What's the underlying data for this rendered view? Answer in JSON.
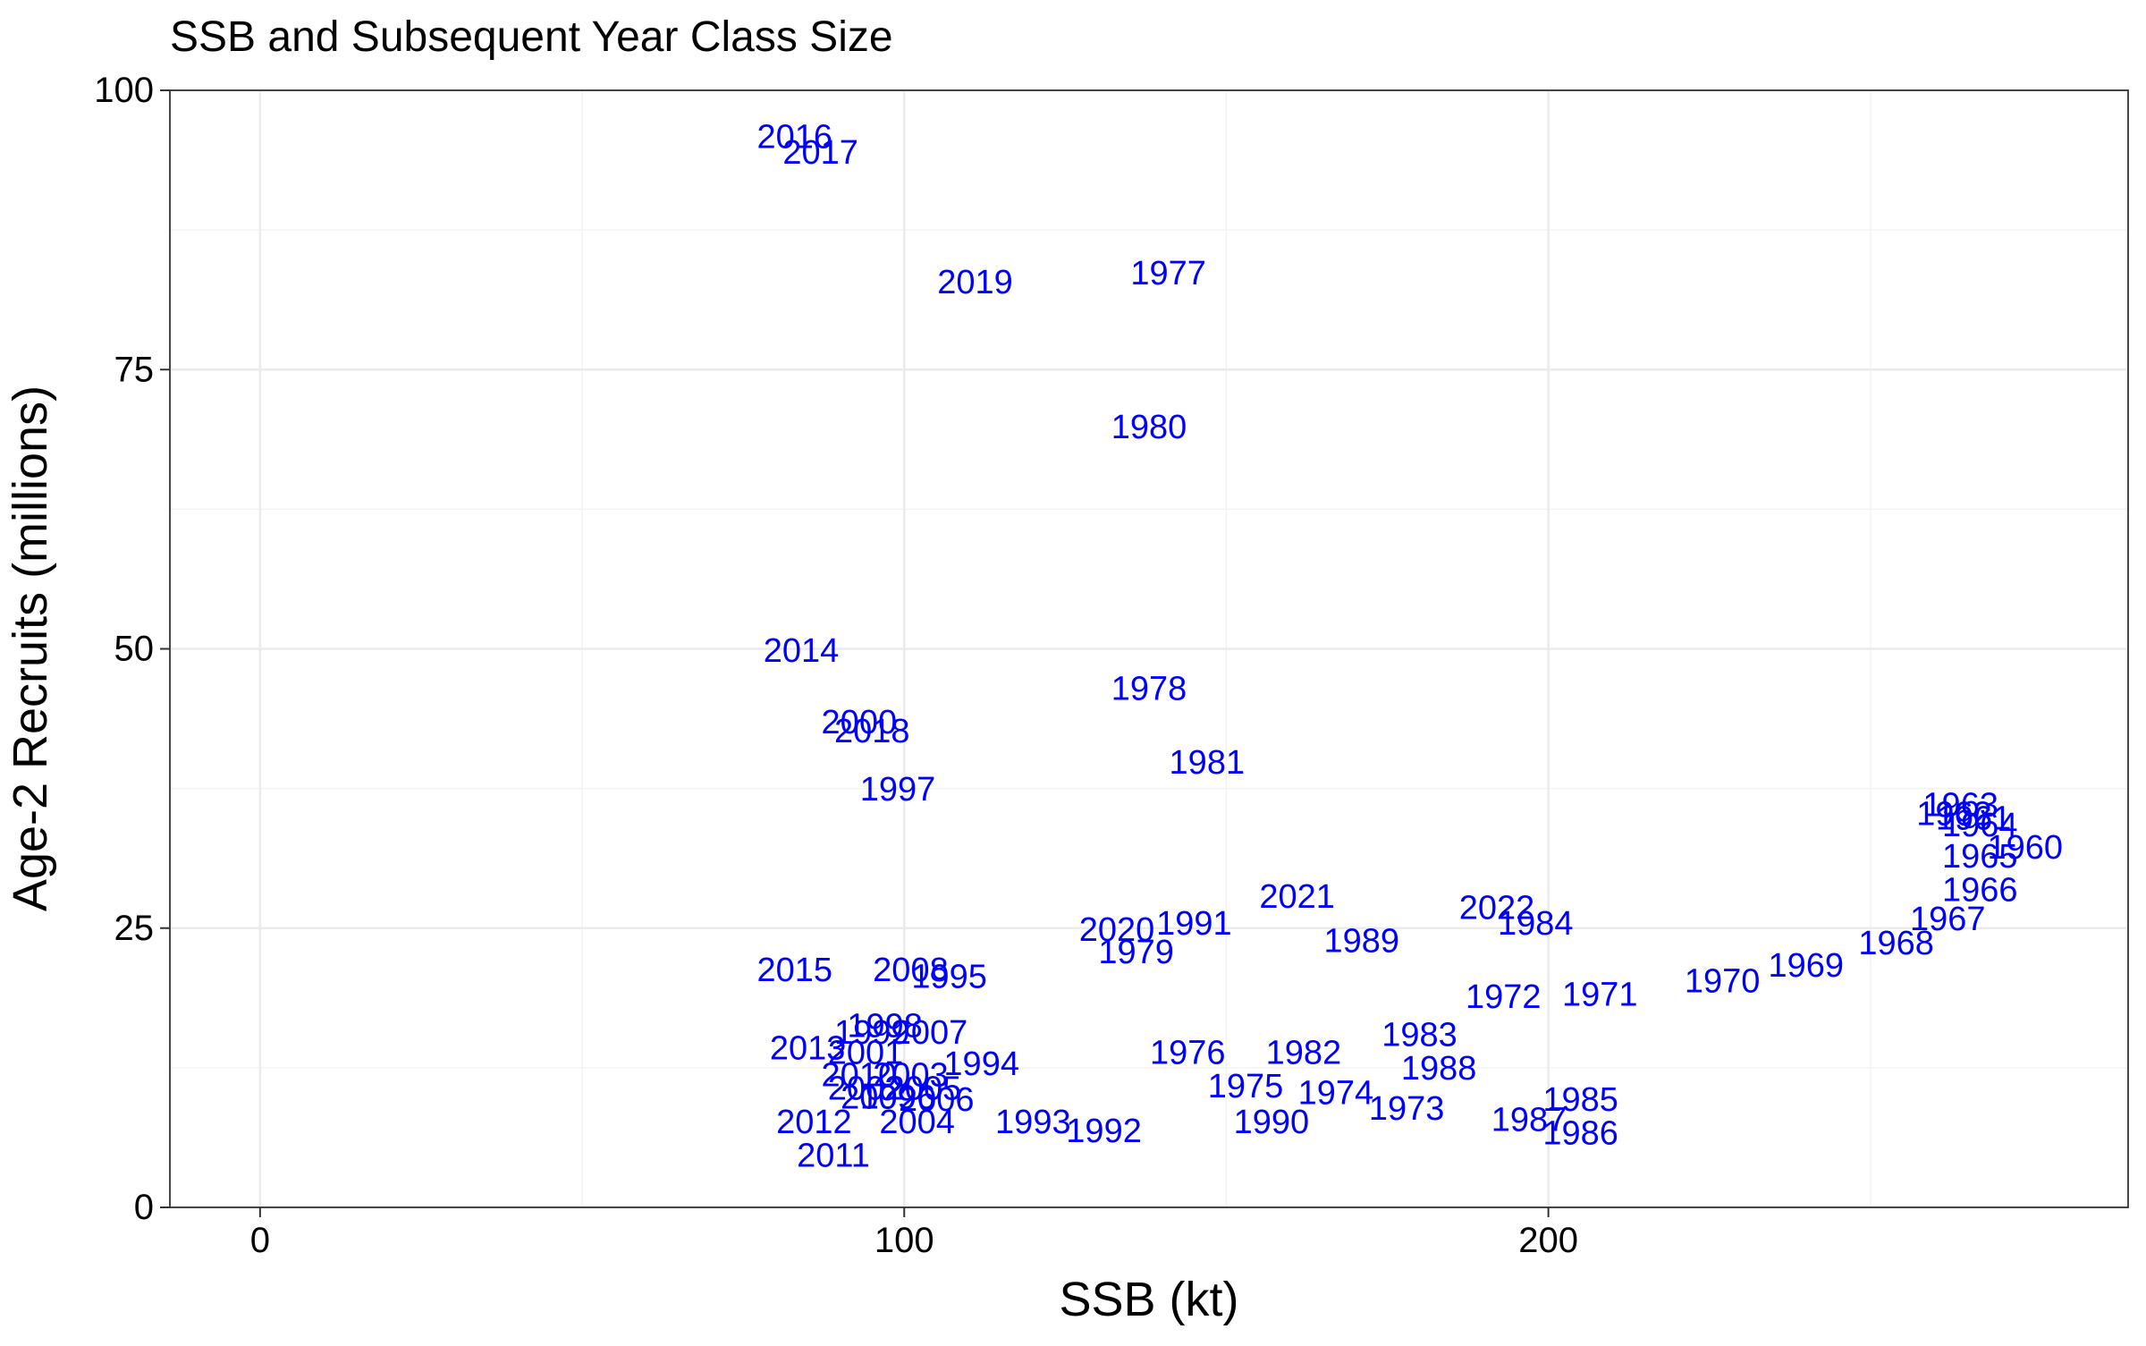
{
  "chart_data": {
    "type": "scatter",
    "title": "SSB and Subsequent Year Class Size",
    "xlabel": "SSB (kt)",
    "ylabel": "Age-2 Recruits (millions)",
    "xlim": [
      -14,
      290
    ],
    "ylim": [
      0,
      100
    ],
    "x_ticks": [
      0,
      100,
      200
    ],
    "y_ticks": [
      0,
      25,
      50,
      75,
      100
    ],
    "grid": true,
    "label_color": "#0000ff",
    "points": [
      {
        "label": "1960",
        "x": 274,
        "y": 32.2
      },
      {
        "label": "1961",
        "x": 266,
        "y": 34.8
      },
      {
        "label": "1962",
        "x": 263,
        "y": 35.2
      },
      {
        "label": "1963",
        "x": 264,
        "y": 36.0
      },
      {
        "label": "1964",
        "x": 267,
        "y": 34.2
      },
      {
        "label": "1965",
        "x": 267,
        "y": 31.4
      },
      {
        "label": "1966",
        "x": 267,
        "y": 28.4
      },
      {
        "label": "1967",
        "x": 262,
        "y": 25.8
      },
      {
        "label": "1968",
        "x": 254,
        "y": 23.6
      },
      {
        "label": "1969",
        "x": 240,
        "y": 21.6
      },
      {
        "label": "1970",
        "x": 227,
        "y": 20.2
      },
      {
        "label": "1971",
        "x": 208,
        "y": 19.0
      },
      {
        "label": "1972",
        "x": 193,
        "y": 18.8
      },
      {
        "label": "1973",
        "x": 178,
        "y": 8.8
      },
      {
        "label": "1974",
        "x": 167,
        "y": 10.2
      },
      {
        "label": "1975",
        "x": 153,
        "y": 10.8
      },
      {
        "label": "1976",
        "x": 144,
        "y": 13.8
      },
      {
        "label": "1977",
        "x": 141,
        "y": 83.6
      },
      {
        "label": "1978",
        "x": 138,
        "y": 46.4
      },
      {
        "label": "1979",
        "x": 136,
        "y": 22.8
      },
      {
        "label": "1980",
        "x": 138,
        "y": 69.8
      },
      {
        "label": "1981",
        "x": 147,
        "y": 39.8
      },
      {
        "label": "1982",
        "x": 162,
        "y": 13.8
      },
      {
        "label": "1983",
        "x": 180,
        "y": 15.4
      },
      {
        "label": "1984",
        "x": 198,
        "y": 25.4
      },
      {
        "label": "1985",
        "x": 205,
        "y": 9.6
      },
      {
        "label": "1986",
        "x": 205,
        "y": 6.6
      },
      {
        "label": "1987",
        "x": 197,
        "y": 7.8
      },
      {
        "label": "1988",
        "x": 183,
        "y": 12.4
      },
      {
        "label": "1989",
        "x": 171,
        "y": 23.8
      },
      {
        "label": "1990",
        "x": 157,
        "y": 7.6
      },
      {
        "label": "1991",
        "x": 145,
        "y": 25.4
      },
      {
        "label": "1992",
        "x": 131,
        "y": 6.8
      },
      {
        "label": "1993",
        "x": 120,
        "y": 7.6
      },
      {
        "label": "1994",
        "x": 112,
        "y": 12.8
      },
      {
        "label": "1995",
        "x": 107,
        "y": 20.6
      },
      {
        "label": "1996",
        "x": 99,
        "y": 9.8
      },
      {
        "label": "1997",
        "x": 99,
        "y": 37.4
      },
      {
        "label": "1998",
        "x": 97,
        "y": 16.2
      },
      {
        "label": "1999",
        "x": 95,
        "y": 15.6
      },
      {
        "label": "2000",
        "x": 93,
        "y": 43.4
      },
      {
        "label": "2001",
        "x": 94,
        "y": 13.8
      },
      {
        "label": "2002",
        "x": 94,
        "y": 10.6
      },
      {
        "label": "2003",
        "x": 101,
        "y": 11.8
      },
      {
        "label": "2004",
        "x": 102,
        "y": 7.6
      },
      {
        "label": "2005",
        "x": 103,
        "y": 10.6
      },
      {
        "label": "2006",
        "x": 105,
        "y": 9.6
      },
      {
        "label": "2007",
        "x": 104,
        "y": 15.6
      },
      {
        "label": "2008",
        "x": 101,
        "y": 21.2
      },
      {
        "label": "2009",
        "x": 96,
        "y": 9.8
      },
      {
        "label": "2010",
        "x": 93,
        "y": 11.8
      },
      {
        "label": "2011",
        "x": 89,
        "y": 4.6
      },
      {
        "label": "2012",
        "x": 86,
        "y": 7.6
      },
      {
        "label": "2013",
        "x": 85,
        "y": 14.2
      },
      {
        "label": "2014",
        "x": 84,
        "y": 49.8
      },
      {
        "label": "2015",
        "x": 83,
        "y": 21.2
      },
      {
        "label": "2016",
        "x": 83,
        "y": 95.8
      },
      {
        "label": "2017",
        "x": 87,
        "y": 94.4
      },
      {
        "label": "2018",
        "x": 95,
        "y": 42.6
      },
      {
        "label": "2019",
        "x": 111,
        "y": 82.8
      },
      {
        "label": "2020",
        "x": 133,
        "y": 24.8
      },
      {
        "label": "2021",
        "x": 161,
        "y": 27.8
      },
      {
        "label": "2022",
        "x": 192,
        "y": 26.8
      }
    ]
  }
}
